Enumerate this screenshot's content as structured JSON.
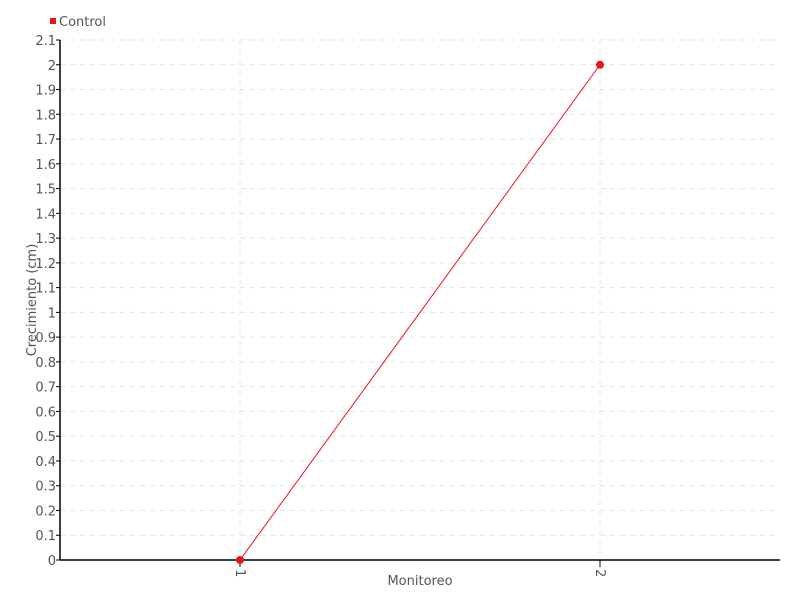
{
  "chart_data": {
    "type": "line",
    "xlabel": "Monitoreo",
    "ylabel": "Crecimiento (cm)",
    "xlim": [
      0.5,
      2.5
    ],
    "ylim": [
      0,
      2.1
    ],
    "x_ticks": [
      "1",
      "2"
    ],
    "y_ticks": [
      "0",
      "0.1",
      "0.2",
      "0.3",
      "0.4",
      "0.5",
      "0.6",
      "0.7",
      "0.8",
      "0.9",
      "1",
      "1.1",
      "1.2",
      "1.3",
      "1.4",
      "1.5",
      "1.6",
      "1.7",
      "1.8",
      "1.9",
      "2",
      "2.1"
    ],
    "grid": true,
    "legend": "top-left",
    "series": [
      {
        "name": "Control",
        "color": "#e8141e",
        "x": [
          1,
          2
        ],
        "y": [
          0,
          2
        ]
      }
    ]
  }
}
